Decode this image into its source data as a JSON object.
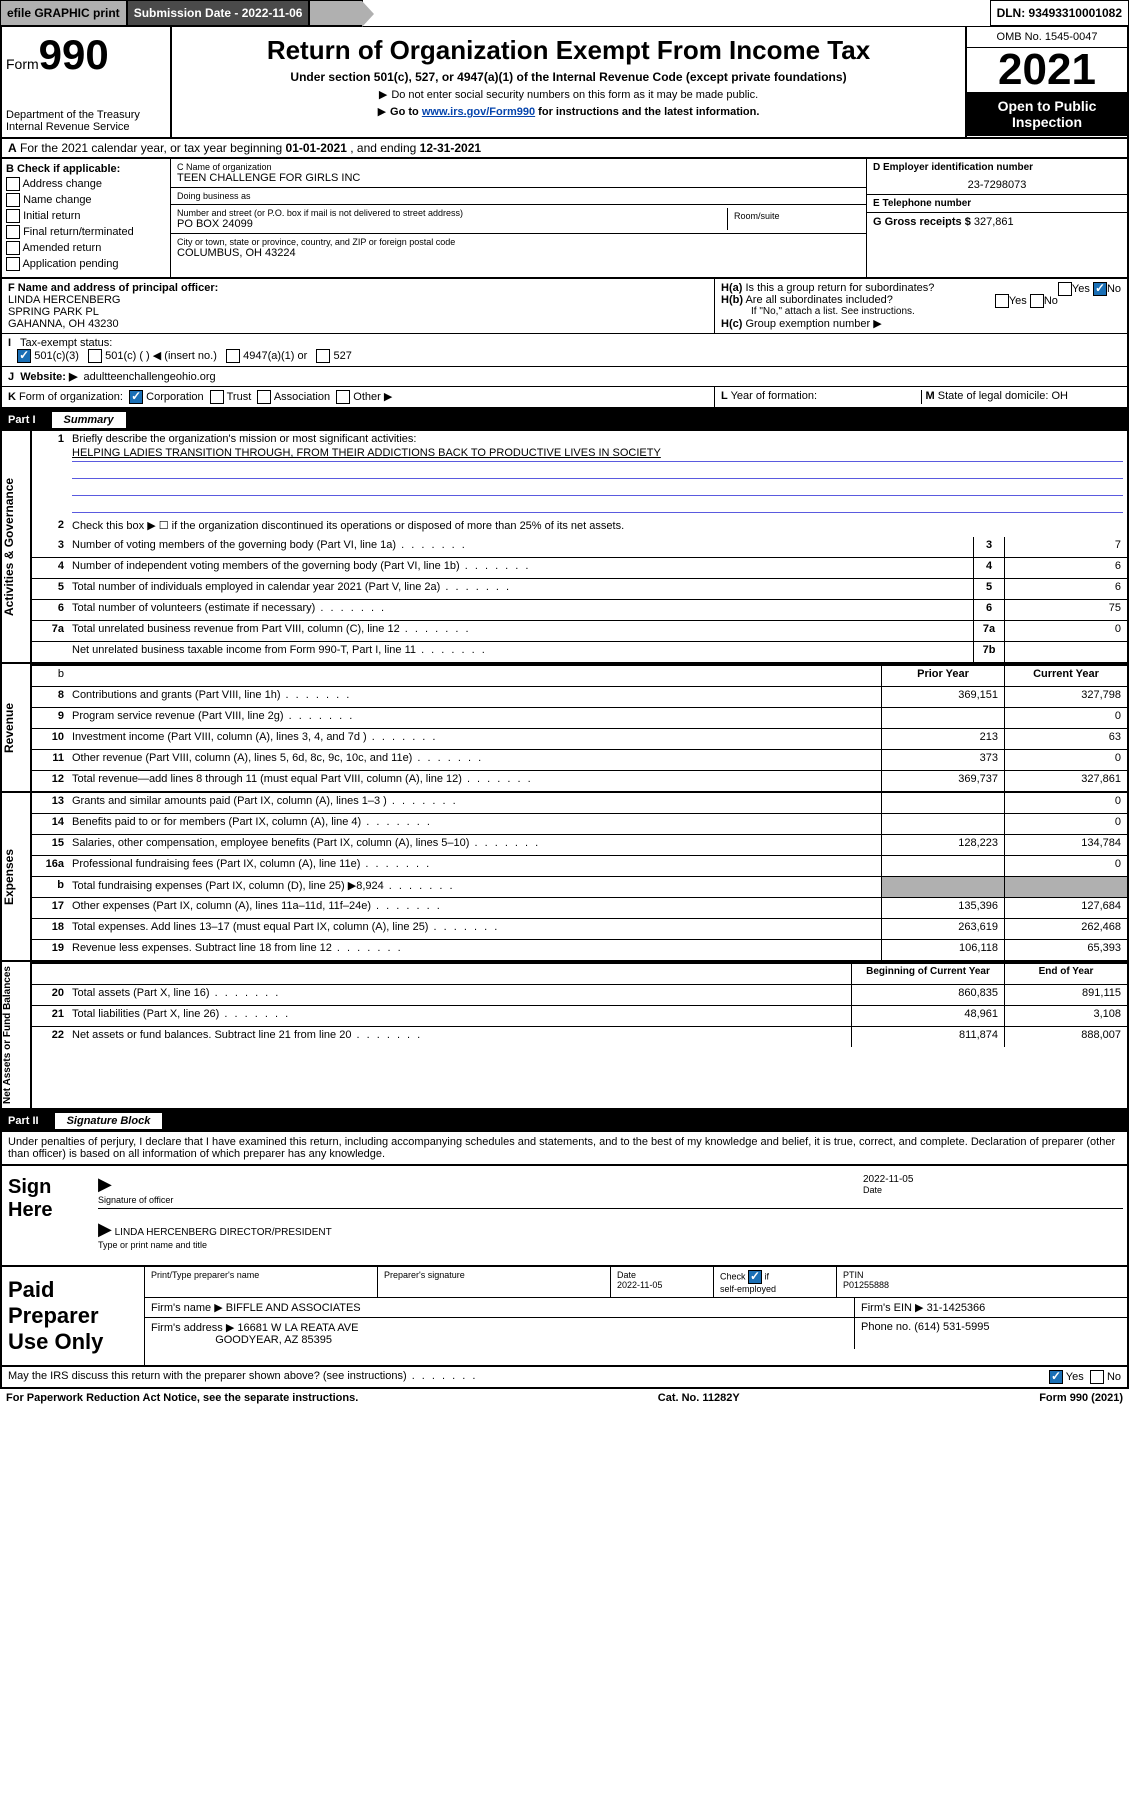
{
  "topbar": {
    "efile": "efile GRAPHIC print",
    "submission": "Submission Date - 2022-11-06",
    "dln": "DLN: 93493310001082"
  },
  "header": {
    "form_label": "Form",
    "form_num": "990",
    "dept": "Department of the Treasury",
    "irs": "Internal Revenue Service",
    "title": "Return of Organization Exempt From Income Tax",
    "subtitle": "Under section 501(c), 527, or 4947(a)(1) of the Internal Revenue Code (except private foundations)",
    "note1": "Do not enter social security numbers on this form as it may be made public.",
    "note2_pre": "Go to ",
    "note2_link": "www.irs.gov/Form990",
    "note2_post": " for instructions and the latest information.",
    "omb": "OMB No. 1545-0047",
    "year": "2021",
    "inspect": "Open to Public Inspection"
  },
  "row_a": {
    "label": "A",
    "text_pre": "For the 2021 calendar year, or tax year beginning ",
    "begin": "01-01-2021",
    "mid": " , and ending ",
    "end": "12-31-2021"
  },
  "col_b": {
    "header": "B Check if applicable:",
    "items": [
      "Address change",
      "Name change",
      "Initial return",
      "Final return/terminated",
      "Amended return",
      "Application pending"
    ]
  },
  "col_c": {
    "name_label": "C Name of organization",
    "name": "TEEN CHALLENGE FOR GIRLS INC",
    "dba_label": "Doing business as",
    "dba": "",
    "street_label": "Number and street (or P.O. box if mail is not delivered to street address)",
    "street": "PO BOX 24099",
    "room_label": "Room/suite",
    "city_label": "City or town, state or province, country, and ZIP or foreign postal code",
    "city": "COLUMBUS, OH  43224"
  },
  "col_d": {
    "ein_label": "D Employer identification number",
    "ein": "23-7298073",
    "phone_label": "E Telephone number",
    "phone": "",
    "gross_label": "G Gross receipts $",
    "gross": "327,861"
  },
  "section_f": {
    "label": "F  Name and address of principal officer:",
    "name": "LINDA HERCENBERG",
    "street": "SPRING PARK PL",
    "city": "GAHANNA, OH  43230"
  },
  "section_h": {
    "ha_q": "Is this a group return for subordinates?",
    "hb_q": "Are all subordinates included?",
    "hb_note": "If \"No,\" attach a list. See instructions.",
    "hc_q": "Group exemption number ▶",
    "ha_label": "H(a)",
    "hb_label": "H(b)",
    "hc_label": "H(c)",
    "yes": "Yes",
    "no": "No"
  },
  "tax_status": {
    "label": "I",
    "text": "Tax-exempt status:",
    "opts": [
      "501(c)(3)",
      "501(c) (   ) ◀ (insert no.)",
      "4947(a)(1) or",
      "527"
    ]
  },
  "website": {
    "label": "J",
    "text": "Website: ▶",
    "url": "adultteenchallengeohio.org"
  },
  "form_org": {
    "label": "K",
    "text": "Form of organization:",
    "opts": [
      "Corporation",
      "Trust",
      "Association",
      "Other ▶"
    ]
  },
  "year_formation": {
    "label": "L",
    "text": "Year of formation:"
  },
  "domicile": {
    "label": "M",
    "text": "State of legal domicile:",
    "val": "OH"
  },
  "part1": {
    "num": "Part I",
    "title": "Summary"
  },
  "mission": {
    "num": "1",
    "label": "Briefly describe the organization's mission or most significant activities:",
    "text": "HELPING LADIES TRANSITION THROUGH, FROM THEIR ADDICTIONS BACK TO PRODUCTIVE LIVES IN SOCIETY"
  },
  "line2": {
    "num": "2",
    "text": "Check this box ▶ ☐  if the organization discontinued its operations or disposed of more than 25% of its net assets."
  },
  "governance_rows": [
    {
      "num": "3",
      "desc": "Number of voting members of the governing body (Part VI, line 1a)",
      "box": "3",
      "val": "7"
    },
    {
      "num": "4",
      "desc": "Number of independent voting members of the governing body (Part VI, line 1b)",
      "box": "4",
      "val": "6"
    },
    {
      "num": "5",
      "desc": "Total number of individuals employed in calendar year 2021 (Part V, line 2a)",
      "box": "5",
      "val": "6"
    },
    {
      "num": "6",
      "desc": "Total number of volunteers (estimate if necessary)",
      "box": "6",
      "val": "75"
    },
    {
      "num": "7a",
      "desc": "Total unrelated business revenue from Part VIII, column (C), line 12",
      "box": "7a",
      "val": "0"
    },
    {
      "num": "",
      "desc": "Net unrelated business taxable income from Form 990-T, Part I, line 11",
      "box": "7b",
      "val": ""
    }
  ],
  "col_headers": {
    "num": "b",
    "prior": "Prior Year",
    "current": "Current Year"
  },
  "revenue_rows": [
    {
      "num": "8",
      "desc": "Contributions and grants (Part VIII, line 1h)",
      "prior": "369,151",
      "cur": "327,798"
    },
    {
      "num": "9",
      "desc": "Program service revenue (Part VIII, line 2g)",
      "prior": "",
      "cur": "0"
    },
    {
      "num": "10",
      "desc": "Investment income (Part VIII, column (A), lines 3, 4, and 7d )",
      "prior": "213",
      "cur": "63"
    },
    {
      "num": "11",
      "desc": "Other revenue (Part VIII, column (A), lines 5, 6d, 8c, 9c, 10c, and 11e)",
      "prior": "373",
      "cur": "0"
    },
    {
      "num": "12",
      "desc": "Total revenue—add lines 8 through 11 (must equal Part VIII, column (A), line 12)",
      "prior": "369,737",
      "cur": "327,861"
    }
  ],
  "expense_rows": [
    {
      "num": "13",
      "desc": "Grants and similar amounts paid (Part IX, column (A), lines 1–3 )",
      "prior": "",
      "cur": "0"
    },
    {
      "num": "14",
      "desc": "Benefits paid to or for members (Part IX, column (A), line 4)",
      "prior": "",
      "cur": "0"
    },
    {
      "num": "15",
      "desc": "Salaries, other compensation, employee benefits (Part IX, column (A), lines 5–10)",
      "prior": "128,223",
      "cur": "134,784"
    },
    {
      "num": "16a",
      "desc": "Professional fundraising fees (Part IX, column (A), line 11e)",
      "prior": "",
      "cur": "0"
    },
    {
      "num": "b",
      "desc": "Total fundraising expenses (Part IX, column (D), line 25) ▶8,924",
      "prior": "shade",
      "cur": "shade"
    },
    {
      "num": "17",
      "desc": "Other expenses (Part IX, column (A), lines 11a–11d, 11f–24e)",
      "prior": "135,396",
      "cur": "127,684"
    },
    {
      "num": "18",
      "desc": "Total expenses. Add lines 13–17 (must equal Part IX, column (A), line 25)",
      "prior": "263,619",
      "cur": "262,468"
    },
    {
      "num": "19",
      "desc": "Revenue less expenses. Subtract line 18 from line 12",
      "prior": "106,118",
      "cur": "65,393"
    }
  ],
  "asset_headers": {
    "begin": "Beginning of Current Year",
    "end": "End of Year"
  },
  "asset_rows": [
    {
      "num": "20",
      "desc": "Total assets (Part X, line 16)",
      "prior": "860,835",
      "cur": "891,115"
    },
    {
      "num": "21",
      "desc": "Total liabilities (Part X, line 26)",
      "prior": "48,961",
      "cur": "3,108"
    },
    {
      "num": "22",
      "desc": "Net assets or fund balances. Subtract line 21 from line 20",
      "prior": "811,874",
      "cur": "888,007"
    }
  ],
  "side_labels": {
    "gov": "Activities & Governance",
    "rev": "Revenue",
    "exp": "Expenses",
    "net": "Net Assets or Fund Balances"
  },
  "part2": {
    "num": "Part II",
    "title": "Signature Block"
  },
  "penalty": "Under penalties of perjury, I declare that I have examined this return, including accompanying schedules and statements, and to the best of my knowledge and belief, it is true, correct, and complete. Declaration of preparer (other than officer) is based on all information of which preparer has any knowledge.",
  "sign": {
    "here": "Sign Here",
    "sig_label": "Signature of officer",
    "date_label": "Date",
    "date": "2022-11-05",
    "name": "LINDA HERCENBERG  DIRECTOR/PRESIDENT",
    "name_label": "Type or print name and title"
  },
  "prep": {
    "title": "Paid Preparer Use Only",
    "h1": "Print/Type preparer's name",
    "h2": "Preparer's signature",
    "h3": "Date",
    "h3v": "2022-11-05",
    "h4": "Check ☑ if self-employed",
    "h5": "PTIN",
    "h5v": "P01255888",
    "firm_label": "Firm's name    ▶",
    "firm": "BIFFLE AND ASSOCIATES",
    "ein_label": "Firm's EIN ▶",
    "ein": "31-1425366",
    "addr_label": "Firm's address ▶",
    "addr1": "16681 W LA REATA AVE",
    "addr2": "GOODYEAR, AZ  85395",
    "phone_label": "Phone no.",
    "phone": "(614) 531-5995"
  },
  "discuss": {
    "text": "May the IRS discuss this return with the preparer shown above? (see instructions)",
    "yes": "Yes",
    "no": "No"
  },
  "footer": {
    "left": "For Paperwork Reduction Act Notice, see the separate instructions.",
    "mid": "Cat. No. 11282Y",
    "right": "Form 990 (2021)"
  }
}
